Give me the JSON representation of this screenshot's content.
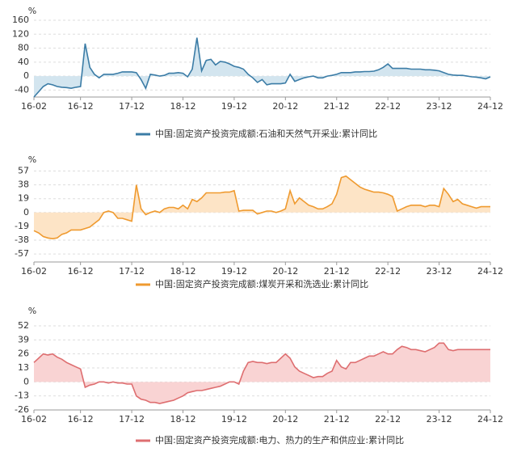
{
  "chart_data": [
    {
      "type": "line",
      "y_label": "%",
      "categories": [
        "16-02",
        null,
        null,
        null,
        null,
        null,
        null,
        null,
        null,
        null,
        "16-12",
        null,
        null,
        null,
        null,
        null,
        null,
        null,
        null,
        null,
        null,
        "17-12",
        null,
        null,
        null,
        null,
        null,
        null,
        null,
        null,
        null,
        null,
        "18-12",
        null,
        null,
        null,
        null,
        null,
        null,
        null,
        null,
        null,
        null,
        "19-12",
        null,
        null,
        null,
        null,
        null,
        null,
        null,
        null,
        null,
        null,
        "20-12",
        null,
        null,
        null,
        null,
        null,
        null,
        null,
        null,
        null,
        null,
        "21-12",
        null,
        null,
        null,
        null,
        null,
        null,
        null,
        null,
        null,
        null,
        "22-12",
        null,
        null,
        null,
        null,
        null,
        null,
        null,
        null,
        null,
        null,
        "23-12",
        null,
        null,
        null,
        null,
        null,
        null,
        null,
        null,
        null,
        null,
        "24-12"
      ],
      "series": [
        {
          "name": "中国:固定资产投资完成额:石油和天然气开采业:累计同比",
          "color": "#3b7ca6",
          "fill": "#d3e5ef",
          "values": [
            -60,
            -45,
            -30,
            -22,
            -25,
            -30,
            -32,
            -33,
            -35,
            -32,
            -30,
            93,
            25,
            5,
            -5,
            5,
            5,
            5,
            8,
            12,
            12,
            12,
            10,
            -10,
            -35,
            5,
            3,
            0,
            2,
            8,
            8,
            10,
            8,
            -2,
            20,
            110,
            15,
            45,
            48,
            32,
            42,
            40,
            35,
            28,
            25,
            20,
            5,
            -5,
            -18,
            -10,
            -25,
            -22,
            -22,
            -22,
            -20,
            5,
            -15,
            -10,
            -5,
            -2,
            0,
            -5,
            -5,
            0,
            2,
            5,
            10,
            10,
            10,
            12,
            12,
            13,
            13,
            14,
            18,
            25,
            35,
            22,
            22,
            22,
            22,
            20,
            20,
            20,
            18,
            18,
            17,
            15,
            10,
            5,
            3,
            2,
            2,
            0,
            -2,
            -3,
            -5,
            -8,
            -2
          ]
        }
      ],
      "ylim": [
        -60,
        160
      ],
      "yticks": [
        -40,
        0,
        40,
        80,
        120,
        160
      ],
      "grid": true
    },
    {
      "type": "line",
      "y_label": "%",
      "categories": [
        "16-02",
        null,
        null,
        null,
        null,
        null,
        null,
        null,
        null,
        null,
        "16-12",
        null,
        null,
        null,
        null,
        null,
        null,
        null,
        null,
        null,
        null,
        "17-12",
        null,
        null,
        null,
        null,
        null,
        null,
        null,
        null,
        null,
        null,
        "18-12",
        null,
        null,
        null,
        null,
        null,
        null,
        null,
        null,
        null,
        null,
        "19-12",
        null,
        null,
        null,
        null,
        null,
        null,
        null,
        null,
        null,
        null,
        "20-12",
        null,
        null,
        null,
        null,
        null,
        null,
        null,
        null,
        null,
        null,
        "21-12",
        null,
        null,
        null,
        null,
        null,
        null,
        null,
        null,
        null,
        null,
        "22-12",
        null,
        null,
        null,
        null,
        null,
        null,
        null,
        null,
        null,
        null,
        "23-12",
        null,
        null,
        null,
        null,
        null,
        null,
        null,
        null,
        null,
        null,
        "24-12"
      ],
      "series": [
        {
          "name": "中国:固定资产投资完成额:煤炭开采和洗选业:累计同比",
          "color": "#ef9a2f",
          "fill": "#fde4c6",
          "values": [
            -25,
            -28,
            -33,
            -35,
            -36,
            -35,
            -30,
            -28,
            -24,
            -24,
            -24,
            -22,
            -20,
            -15,
            -10,
            0,
            2,
            0,
            -8,
            -8,
            -10,
            -12,
            38,
            5,
            -3,
            0,
            2,
            0,
            5,
            7,
            7,
            5,
            10,
            5,
            18,
            15,
            20,
            27,
            27,
            27,
            27,
            28,
            28,
            30,
            2,
            3,
            3,
            3,
            -2,
            0,
            2,
            2,
            0,
            2,
            5,
            30,
            12,
            20,
            15,
            10,
            8,
            5,
            5,
            8,
            12,
            25,
            48,
            50,
            45,
            40,
            35,
            32,
            30,
            28,
            28,
            27,
            25,
            22,
            2,
            5,
            8,
            10,
            10,
            10,
            8,
            10,
            10,
            8,
            33,
            25,
            15,
            18,
            12,
            10,
            8,
            6,
            8,
            8,
            8
          ]
        }
      ],
      "ylim": [
        -68,
        62
      ],
      "yticks": [
        -57,
        -38,
        -19,
        0,
        19,
        38,
        57
      ],
      "grid": true
    },
    {
      "type": "line",
      "y_label": "%",
      "categories": [
        "16-02",
        null,
        null,
        null,
        null,
        null,
        null,
        null,
        null,
        null,
        "16-12",
        null,
        null,
        null,
        null,
        null,
        null,
        null,
        null,
        null,
        null,
        "17-12",
        null,
        null,
        null,
        null,
        null,
        null,
        null,
        null,
        null,
        null,
        "18-12",
        null,
        null,
        null,
        null,
        null,
        null,
        null,
        null,
        null,
        null,
        "19-12",
        null,
        null,
        null,
        null,
        null,
        null,
        null,
        null,
        null,
        null,
        "20-12",
        null,
        null,
        null,
        null,
        null,
        null,
        null,
        null,
        null,
        null,
        "21-12",
        null,
        null,
        null,
        null,
        null,
        null,
        null,
        null,
        null,
        null,
        "22-12",
        null,
        null,
        null,
        null,
        null,
        null,
        null,
        null,
        null,
        null,
        "23-12",
        null,
        null,
        null,
        null,
        null,
        null,
        null,
        null,
        null,
        null,
        "24-12"
      ],
      "series": [
        {
          "name": "中国:固定资产投资完成额:电力、热力的生产和供应业:累计同比",
          "color": "#de6e70",
          "fill": "#f9d3d3",
          "values": [
            18,
            22,
            26,
            25,
            26,
            23,
            21,
            18,
            16,
            14,
            12,
            -5,
            -3,
            -2,
            0,
            0,
            -1,
            0,
            -1,
            -1,
            -2,
            -2,
            -13,
            -16,
            -17,
            -19,
            -19,
            -20,
            -19,
            -18,
            -17,
            -15,
            -13,
            -10,
            -9,
            -8,
            -8,
            -7,
            -6,
            -5,
            -4,
            -2,
            0,
            0,
            -2,
            10,
            18,
            19,
            18,
            18,
            17,
            18,
            18,
            22,
            26,
            22,
            14,
            10,
            8,
            6,
            4,
            5,
            5,
            8,
            10,
            20,
            14,
            12,
            18,
            18,
            20,
            22,
            24,
            24,
            26,
            28,
            26,
            26,
            30,
            33,
            32,
            30,
            30,
            29,
            28,
            30,
            32,
            36,
            36,
            30,
            29,
            30,
            30,
            30,
            30,
            30,
            30,
            30,
            30
          ]
        }
      ],
      "ylim": [
        -26,
        58
      ],
      "yticks": [
        -26,
        -13,
        0,
        13,
        26,
        39,
        52
      ],
      "grid": true
    }
  ]
}
